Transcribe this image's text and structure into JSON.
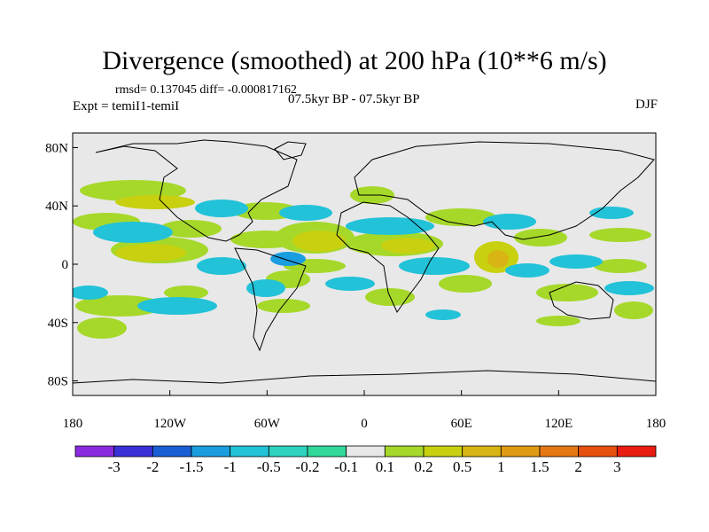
{
  "title": "Divergence (smoothed) at 200 hPa (10**6 m/s)",
  "stats": "rmsd= 0.137045  diff= -0.000817162",
  "experiment": "Expt = temiI1-temiI",
  "period": "07.5kyr BP - 07.5kyr BP",
  "season": "DJF",
  "axes": {
    "lon_ticks": [
      {
        "lon": -180,
        "label": "180"
      },
      {
        "lon": -120,
        "label": "120W"
      },
      {
        "lon": -60,
        "label": "60W"
      },
      {
        "lon": 0,
        "label": "0"
      },
      {
        "lon": 60,
        "label": "60E"
      },
      {
        "lon": 120,
        "label": "120E"
      },
      {
        "lon": 180,
        "label": "180"
      }
    ],
    "lat_ticks": [
      {
        "lat": 80,
        "label": "80N"
      },
      {
        "lat": 40,
        "label": "40N"
      },
      {
        "lat": 0,
        "label": "0"
      },
      {
        "lat": -40,
        "label": "40S"
      },
      {
        "lat": -80,
        "label": "80S"
      }
    ]
  },
  "colorbar": {
    "colors": [
      "#8a2be2",
      "#3a30d8",
      "#1a5fd6",
      "#1a9ee0",
      "#22c2d8",
      "#2ed3c0",
      "#30d89a",
      "#e8e8e8",
      "#a6d82a",
      "#c8d010",
      "#d8b414",
      "#e09a14",
      "#e67814",
      "#e85010",
      "#e81c10"
    ],
    "labels": [
      "-3",
      "-2",
      "-1.5",
      "-1",
      "-0.5",
      "-0.2",
      "-0.1",
      "0.1",
      "0.2",
      "0.5",
      "1",
      "1.5",
      "2",
      "3"
    ]
  }
}
